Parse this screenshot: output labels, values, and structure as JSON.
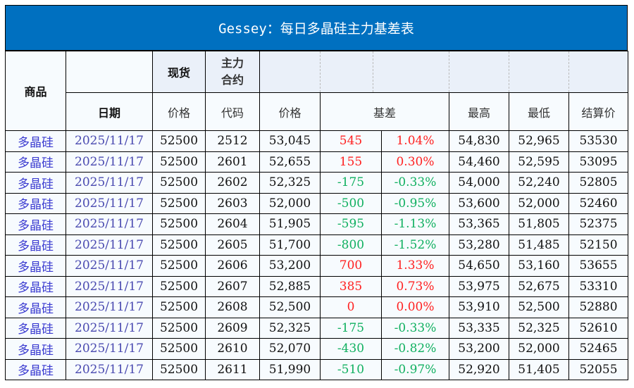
{
  "title": "Gessey：每日多晶硅主力基差表",
  "headers": {
    "product": "商品",
    "spot": "现货",
    "main_contract": "主力\n合约",
    "date": "日期",
    "spot_price": "价格",
    "code": "代码",
    "price": "价格",
    "basis": "基差",
    "high": "最高",
    "low": "最低",
    "settle": "结算价"
  },
  "colors": {
    "title_bg": "#0070c0",
    "positive": "#ff2020",
    "negative": "#10b060"
  },
  "rows": [
    {
      "product": "多晶硅",
      "date": "2025/11/17",
      "spot": "52500",
      "code": "2512",
      "price": "53,045",
      "basis": "545",
      "basis_pct": "1.04%",
      "high": "54,830",
      "low": "52,965",
      "settle": "53530"
    },
    {
      "product": "多晶硅",
      "date": "2025/11/17",
      "spot": "52500",
      "code": "2601",
      "price": "52,655",
      "basis": "155",
      "basis_pct": "0.30%",
      "high": "54,460",
      "low": "52,595",
      "settle": "53095"
    },
    {
      "product": "多晶硅",
      "date": "2025/11/17",
      "spot": "52500",
      "code": "2602",
      "price": "52,325",
      "basis": "-175",
      "basis_pct": "-0.33%",
      "high": "54,000",
      "low": "52,240",
      "settle": "52805"
    },
    {
      "product": "多晶硅",
      "date": "2025/11/17",
      "spot": "52500",
      "code": "2603",
      "price": "52,000",
      "basis": "-500",
      "basis_pct": "-0.95%",
      "high": "53,600",
      "low": "52,000",
      "settle": "52460"
    },
    {
      "product": "多晶硅",
      "date": "2025/11/17",
      "spot": "52500",
      "code": "2604",
      "price": "51,905",
      "basis": "-595",
      "basis_pct": "-1.13%",
      "high": "53,365",
      "low": "51,805",
      "settle": "52375"
    },
    {
      "product": "多晶硅",
      "date": "2025/11/17",
      "spot": "52500",
      "code": "2605",
      "price": "51,700",
      "basis": "-800",
      "basis_pct": "-1.52%",
      "high": "53,280",
      "low": "51,485",
      "settle": "52150"
    },
    {
      "product": "多晶硅",
      "date": "2025/11/17",
      "spot": "52500",
      "code": "2606",
      "price": "53,200",
      "basis": "700",
      "basis_pct": "1.33%",
      "high": "54,650",
      "low": "53,160",
      "settle": "53655"
    },
    {
      "product": "多晶硅",
      "date": "2025/11/17",
      "spot": "52500",
      "code": "2607",
      "price": "52,885",
      "basis": "385",
      "basis_pct": "0.73%",
      "high": "53,975",
      "low": "52,675",
      "settle": "53310"
    },
    {
      "product": "多晶硅",
      "date": "2025/11/17",
      "spot": "52500",
      "code": "2608",
      "price": "52,500",
      "basis": "0",
      "basis_pct": "0.00%",
      "high": "53,910",
      "low": "52,500",
      "settle": "52880"
    },
    {
      "product": "多晶硅",
      "date": "2025/11/17",
      "spot": "52500",
      "code": "2609",
      "price": "52,325",
      "basis": "-175",
      "basis_pct": "-0.33%",
      "high": "53,335",
      "low": "52,325",
      "settle": "52610"
    },
    {
      "product": "多晶硅",
      "date": "2025/11/17",
      "spot": "52500",
      "code": "2610",
      "price": "52,070",
      "basis": "-430",
      "basis_pct": "-0.82%",
      "high": "53,200",
      "low": "52,000",
      "settle": "52465"
    },
    {
      "product": "多晶硅",
      "date": "2025/11/17",
      "spot": "52500",
      "code": "2611",
      "price": "51,990",
      "basis": "-510",
      "basis_pct": "-0.97%",
      "high": "52,920",
      "low": "51,405",
      "settle": "52055"
    }
  ]
}
